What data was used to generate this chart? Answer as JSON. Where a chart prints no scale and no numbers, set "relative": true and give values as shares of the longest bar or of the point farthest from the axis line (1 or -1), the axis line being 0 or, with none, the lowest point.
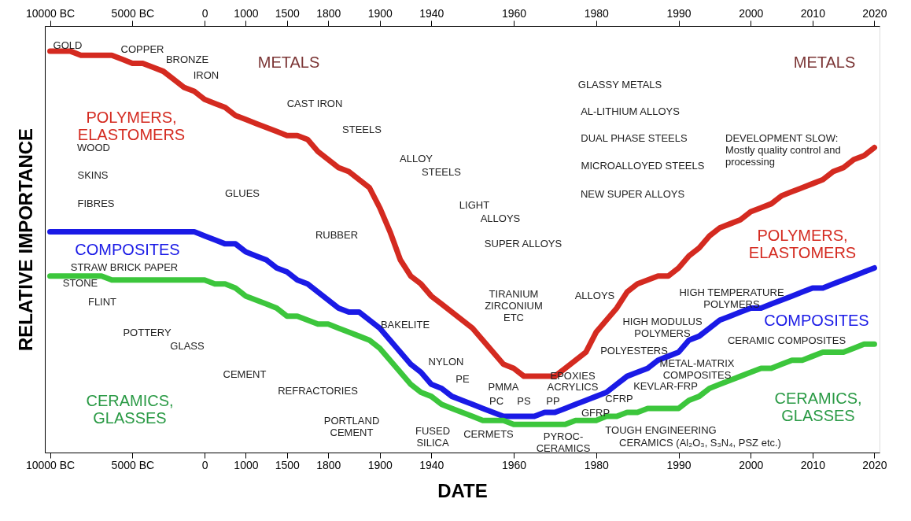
{
  "chart_data": {
    "type": "line",
    "relative": true,
    "xlabel": "DATE",
    "ylabel": "RELATIVE IMPORTANCE",
    "categories": [
      "10000 BC",
      null,
      null,
      null,
      null,
      null,
      null,
      null,
      "5000 BC",
      null,
      null,
      null,
      null,
      null,
      null,
      "0",
      null,
      null,
      null,
      "1000",
      null,
      null,
      null,
      "1500",
      null,
      null,
      null,
      "1800",
      null,
      null,
      null,
      null,
      "1900",
      null,
      null,
      null,
      null,
      "1940",
      null,
      null,
      null,
      null,
      null,
      null,
      null,
      "1960",
      null,
      null,
      null,
      null,
      null,
      null,
      null,
      "1980",
      null,
      null,
      null,
      null,
      null,
      null,
      null,
      "1990",
      null,
      null,
      null,
      null,
      null,
      null,
      "2000",
      null,
      null,
      null,
      null,
      null,
      "2010",
      null,
      null,
      null,
      null,
      null,
      "2020"
    ],
    "series": [
      {
        "color": "#d42a20",
        "values": [
          1.0,
          1.0,
          1.0,
          0.99,
          0.99,
          0.99,
          0.99,
          0.98,
          0.97,
          0.97,
          0.96,
          0.95,
          0.93,
          0.91,
          0.9,
          0.88,
          0.87,
          0.86,
          0.84,
          0.83,
          0.82,
          0.81,
          0.8,
          0.79,
          0.79,
          0.78,
          0.75,
          0.73,
          0.71,
          0.7,
          0.68,
          0.66,
          0.61,
          0.55,
          0.48,
          0.44,
          0.42,
          0.39,
          0.37,
          0.35,
          0.33,
          0.31,
          0.28,
          0.25,
          0.22,
          0.21,
          0.19,
          0.19,
          0.19,
          0.19,
          0.21,
          0.23,
          0.25,
          0.3,
          0.33,
          0.36,
          0.4,
          0.42,
          0.43,
          0.44,
          0.44,
          0.46,
          0.49,
          0.51,
          0.54,
          0.56,
          0.57,
          0.58,
          0.6,
          0.61,
          0.62,
          0.64,
          0.65,
          0.66,
          0.67,
          0.68,
          0.7,
          0.71,
          0.73,
          0.74,
          0.76
        ]
      },
      {
        "color": "#1a1ae6",
        "values": [
          0.55,
          0.55,
          0.55,
          0.55,
          0.55,
          0.55,
          0.55,
          0.55,
          0.55,
          0.55,
          0.55,
          0.55,
          0.55,
          0.55,
          0.55,
          0.54,
          0.53,
          0.52,
          0.52,
          0.5,
          0.49,
          0.48,
          0.46,
          0.45,
          0.43,
          0.42,
          0.4,
          0.38,
          0.36,
          0.35,
          0.35,
          0.33,
          0.31,
          0.28,
          0.25,
          0.22,
          0.2,
          0.17,
          0.16,
          0.14,
          0.13,
          0.12,
          0.11,
          0.1,
          0.09,
          0.09,
          0.09,
          0.09,
          0.1,
          0.1,
          0.11,
          0.12,
          0.13,
          0.14,
          0.15,
          0.17,
          0.19,
          0.2,
          0.21,
          0.23,
          0.24,
          0.25,
          0.28,
          0.29,
          0.31,
          0.33,
          0.34,
          0.35,
          0.36,
          0.36,
          0.37,
          0.38,
          0.39,
          0.4,
          0.41,
          0.41,
          0.42,
          0.43,
          0.44,
          0.45,
          0.46
        ]
      },
      {
        "color": "#3cc63c",
        "values": [
          0.44,
          0.44,
          0.44,
          0.44,
          0.44,
          0.44,
          0.43,
          0.43,
          0.43,
          0.43,
          0.43,
          0.43,
          0.43,
          0.43,
          0.43,
          0.43,
          0.42,
          0.42,
          0.41,
          0.39,
          0.38,
          0.37,
          0.36,
          0.34,
          0.34,
          0.33,
          0.32,
          0.32,
          0.31,
          0.3,
          0.29,
          0.28,
          0.26,
          0.23,
          0.2,
          0.17,
          0.15,
          0.14,
          0.12,
          0.11,
          0.1,
          0.09,
          0.08,
          0.08,
          0.08,
          0.07,
          0.07,
          0.07,
          0.07,
          0.07,
          0.07,
          0.08,
          0.08,
          0.08,
          0.09,
          0.09,
          0.1,
          0.1,
          0.11,
          0.11,
          0.11,
          0.11,
          0.13,
          0.14,
          0.16,
          0.17,
          0.18,
          0.19,
          0.2,
          0.21,
          0.21,
          0.22,
          0.23,
          0.23,
          0.24,
          0.25,
          0.25,
          0.25,
          0.26,
          0.27,
          0.27
        ]
      }
    ],
    "annotations": [
      "METALS",
      "METALS",
      "POLYMERS,\nELASTOMERS",
      "POLYMERS,\nELASTOMERS",
      "COMPOSITES",
      "COMPOSITES",
      "CERAMICS,\nGLASSES",
      "CERAMICS,\nGLASSES",
      "GOLD",
      "COPPER",
      "BRONZE",
      "IRON",
      "CAST  IRON",
      "STEELS",
      "ALLOY",
      "STEELS",
      "LIGHT",
      "ALLOYS",
      "SUPER ALLOYS",
      "WOOD",
      "SKINS",
      "FIBRES",
      "GLUES",
      "RUBBER",
      "STRAW BRICK  PAPER",
      "STONE",
      "FLINT",
      "POTTERY",
      "GLASS",
      "CEMENT",
      "REFRACTORIES",
      "PORTLAND\nCEMENT",
      "BAKELITE",
      "NYLON",
      "PE",
      "PMMA",
      "PC",
      "PS",
      "PP",
      "ACRYLICS",
      "EPOXIES",
      "POLYESTERS",
      "HIGH MODULUS\nPOLYMERS",
      "HIGH TEMPERATURE\nPOLYMERS",
      "CERAMIC COMPOSITES",
      "METAL-MATRIX\nCOMPOSITES",
      "KEVLAR-FRP",
      "CFRP",
      "GFRP",
      "FUSED\nSILICA",
      "CERMETS",
      "PYROC-\nCERAMICS",
      "TOUGH ENGINEERING",
      "CERAMICS (Al₂O₃, S₃N₄, PSZ etc.)",
      "TIRANIUM\nZIRCONIUM\nETC",
      "ALLOYS",
      "GLASSY METALS",
      "AL-LITHIUM ALLOYS",
      "DUAL PHASE STEELS",
      "MICROALLOYED STEELS",
      "NEW SUPER ALLOYS",
      "DEVELOPMENT SLOW:\nMostly quality control and\nprocessing"
    ]
  }
}
